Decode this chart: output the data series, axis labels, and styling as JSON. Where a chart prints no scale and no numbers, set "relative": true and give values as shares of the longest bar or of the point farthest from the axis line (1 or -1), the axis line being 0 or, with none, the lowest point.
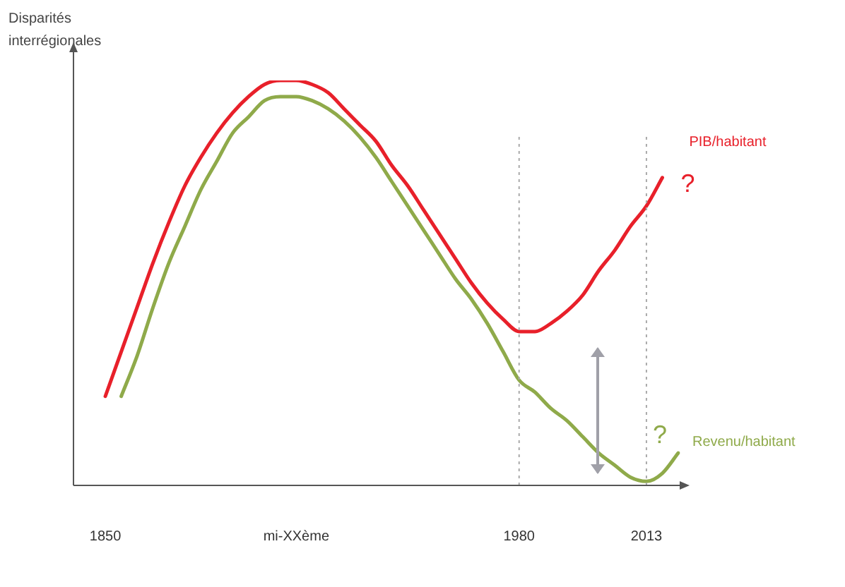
{
  "chart_data": {
    "type": "line",
    "ylabel": "Disparités interrégionales",
    "relative": true,
    "grid": false,
    "legend": false,
    "marker": "none",
    "line_style": "solid",
    "categories": [
      null,
      null,
      "1850",
      null,
      null,
      null,
      null,
      null,
      null,
      null,
      null,
      null,
      null,
      null,
      "mi-XXème",
      null,
      null,
      null,
      null,
      null,
      null,
      null,
      null,
      null,
      null,
      null,
      null,
      null,
      "1980",
      null,
      null,
      null,
      null,
      null,
      null,
      null,
      "2013",
      null,
      null
    ],
    "series": [
      {
        "name": "PIB/habitant",
        "color": "#e8202a",
        "values": [
          null,
          null,
          0.22,
          0.33,
          0.44,
          0.55,
          0.65,
          0.74,
          0.81,
          0.87,
          0.92,
          0.96,
          0.99,
          1,
          1,
          0.99,
          0.97,
          0.93,
          0.89,
          0.85,
          0.79,
          0.74,
          0.68,
          0.62,
          0.56,
          0.5,
          0.45,
          0.41,
          0.38,
          0.38,
          0.4,
          0.43,
          0.47,
          0.53,
          0.58,
          0.64,
          0.69,
          0.76,
          null
        ]
      },
      {
        "name": "Revenu/habitant",
        "color": "#8faa4a",
        "values": [
          null,
          null,
          null,
          0.22,
          0.32,
          0.44,
          0.55,
          0.64,
          0.73,
          0.8,
          0.87,
          0.91,
          0.95,
          0.96,
          0.96,
          0.95,
          0.93,
          0.9,
          0.86,
          0.81,
          0.75,
          0.69,
          0.63,
          0.57,
          0.51,
          0.46,
          0.4,
          0.33,
          0.26,
          0.23,
          0.19,
          0.16,
          0.12,
          0.08,
          0.05,
          0.02,
          0.01,
          0.03,
          0.08
        ]
      }
    ],
    "ref_lines": [
      {
        "axis": "x",
        "value": "1980",
        "color": "#aaaaaa",
        "line_style": "dotted"
      },
      {
        "axis": "x",
        "value": "2013",
        "color": "#aaaaaa",
        "line_style": "dotted"
      }
    ],
    "annotations": [
      "?",
      "?"
    ]
  }
}
